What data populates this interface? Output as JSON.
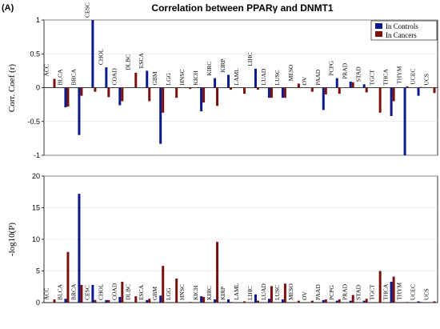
{
  "figure": {
    "panel_label": "(A)",
    "title": "Correlation between PPARγ and DNMT1",
    "colors": {
      "controls": "#0a1a8c",
      "cancers": "#7a1010"
    }
  },
  "chart_data": [
    {
      "type": "bar",
      "ylabel": "Corr. Coef (r)",
      "ylim": [
        -1,
        1
      ],
      "yticks": [
        "1",
        "0.5",
        "0",
        "-0.5",
        "-1"
      ],
      "legend": {
        "position": "top-right",
        "entries": [
          "In Controls",
          "In Cancers"
        ]
      },
      "categories": [
        "ACC",
        "BLCA",
        "BRCA",
        "CESC",
        "CHOL",
        "COAD",
        "DLBC",
        "ESCA",
        "GBM",
        "LGG",
        "HNSC",
        "KICH",
        "KIRC",
        "KIRP",
        "LAML",
        "LIHC",
        "LUAD",
        "LUSC",
        "MESO",
        "OV",
        "PAAD",
        "PCPG",
        "PRAD",
        "STAD",
        "TGCT",
        "THCA",
        "THYM",
        "UCEC",
        "UCS"
      ],
      "series": [
        {
          "name": "In Controls",
          "values": [
            0,
            -0.29,
            -0.7,
            1.0,
            0.3,
            -0.26,
            0,
            0.25,
            -0.83,
            0,
            0,
            -0.35,
            0.14,
            0.19,
            0,
            0.28,
            -0.15,
            -0.15,
            0,
            0,
            -0.33,
            0.14,
            0.09,
            0.05,
            0,
            -0.42,
            -1.0,
            -0.12,
            0
          ]
        },
        {
          "name": "In Cancers",
          "values": [
            0.13,
            -0.28,
            -0.12,
            -0.06,
            -0.14,
            -0.2,
            0.22,
            -0.2,
            -0.37,
            -0.15,
            -0.02,
            -0.22,
            -0.27,
            -0.03,
            -0.09,
            -0.03,
            -0.15,
            -0.15,
            0.06,
            -0.06,
            -0.1,
            -0.09,
            0.08,
            -0.07,
            -0.37,
            -0.2,
            0.02,
            0.01,
            -0.08
          ]
        }
      ]
    },
    {
      "type": "bar",
      "ylabel": "-log10(P)",
      "ylim": [
        0,
        20
      ],
      "yticks": [
        "20",
        "15",
        "10",
        "5",
        "0"
      ],
      "categories": [
        "ACC",
        "BLCA",
        "BRCA",
        "CESC",
        "CHOL",
        "COAD",
        "DLBC",
        "ESCA",
        "GBM",
        "LGG",
        "HNSC",
        "KICH",
        "KIRC",
        "KIRP",
        "LAML",
        "LIHC",
        "LUAD",
        "LUSC",
        "MESO",
        "OV",
        "PAAD",
        "PCPG",
        "PRAD",
        "STAD",
        "TGCT",
        "THCA",
        "THYM",
        "UCEC",
        "UCS"
      ],
      "series": [
        {
          "name": "In Controls",
          "values": [
            0,
            0.6,
            17.2,
            2.8,
            0.4,
            0.9,
            0,
            0.4,
            1.1,
            0,
            0,
            1.0,
            0.5,
            0.5,
            0,
            1.3,
            0.6,
            0.5,
            0,
            0,
            0.4,
            0.3,
            0.3,
            0.3,
            0,
            3.3,
            0,
            0.2,
            0
          ]
        },
        {
          "name": "In Cancers",
          "values": [
            0.5,
            8.0,
            2.8,
            0.4,
            0.4,
            3.3,
            1.0,
            0.6,
            5.8,
            3.8,
            0.1,
            0.9,
            9.6,
            0.1,
            0.2,
            0.3,
            2.6,
            3.0,
            0.3,
            0.3,
            0.5,
            0.5,
            1.2,
            0.6,
            5.0,
            4.1,
            0.1,
            0.1,
            0.2
          ]
        }
      ]
    }
  ]
}
